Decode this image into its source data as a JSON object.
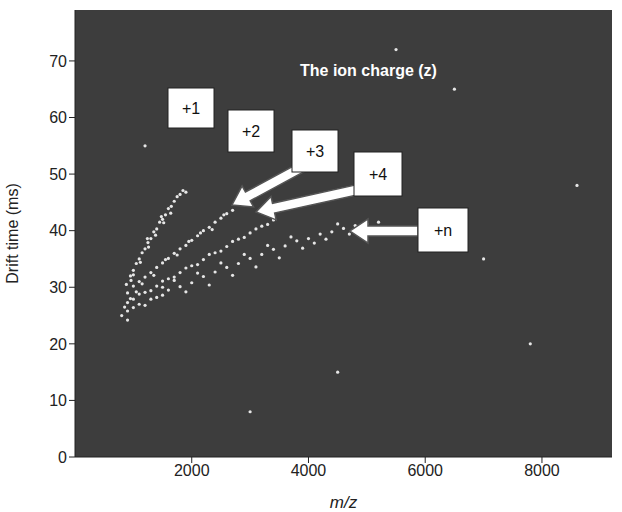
{
  "chart_data": {
    "type": "scatter",
    "title": "The ion charge (z)",
    "x_label": "m/z",
    "y_label": "Drift time (ms)",
    "xlim": [
      0,
      9200
    ],
    "ylim": [
      0,
      79
    ],
    "xticks": [
      2000,
      4000,
      6000,
      8000
    ],
    "yticks": [
      0,
      10,
      20,
      30,
      40,
      50,
      60,
      70
    ],
    "grid": false,
    "color": "#e6e6e6",
    "marker": "circle",
    "annotations": [
      "+1",
      "+2",
      "+3",
      "+4",
      "+n"
    ],
    "x": [
      880,
      950,
      1000,
      1050,
      1100,
      1150,
      1200,
      1250,
      1300,
      1350,
      1400,
      1450,
      1500,
      1550,
      1600,
      1650,
      1700,
      1750,
      1800,
      1850,
      1900,
      1000,
      1120,
      1260,
      1380,
      1520,
      1640,
      1240,
      1480,
      960,
      900,
      1000,
      1100,
      1200,
      1300,
      1400,
      1500,
      1600,
      1700,
      1800,
      1900,
      2000,
      2100,
      2200,
      2300,
      2400,
      2500,
      2600,
      2700,
      1150,
      1350,
      1550,
      1750,
      1950,
      2150,
      2350,
      2550,
      900,
      1000,
      1200,
      1400,
      1600,
      1800,
      2000,
      2200,
      2400,
      2600,
      2800,
      3000,
      3200,
      3400,
      1100,
      1300,
      1500,
      1700,
      1900,
      2100,
      2300,
      2500,
      2700,
      2900,
      3100,
      3300,
      800,
      850,
      900,
      1000,
      1100,
      1200,
      1300,
      1400,
      1500,
      1600,
      1800,
      2000,
      2200,
      2400,
      2600,
      2800,
      3000,
      3200,
      3400,
      3600,
      3800,
      4000,
      4200,
      4400,
      4600,
      4800,
      5000,
      5200,
      1500,
      1700,
      1900,
      2100,
      2300,
      2500,
      2700,
      2900,
      3100,
      3300,
      3500,
      3700,
      3900,
      4100,
      4300,
      4500,
      4700,
      900,
      950,
      1050,
      6500,
      7800,
      3000,
      5500,
      8600,
      1200,
      4500,
      7000
    ],
    "values": [
      30.5,
      32,
      33,
      34.2,
      35,
      36.1,
      36.8,
      37.9,
      38.6,
      39.8,
      40.3,
      41.5,
      42,
      42.8,
      43.9,
      44.3,
      45.2,
      46,
      46.4,
      47.1,
      46.8,
      32.2,
      34.4,
      37.1,
      39.2,
      41.4,
      43.1,
      38.6,
      42.5,
      31.2,
      29,
      30.2,
      31,
      31.8,
      32.6,
      33.5,
      34.3,
      35.1,
      36,
      36.8,
      37.4,
      38.3,
      39.1,
      40,
      40.6,
      41.5,
      42.2,
      43,
      43.6,
      30.6,
      32.1,
      34.9,
      35.7,
      38.1,
      39.6,
      40.2,
      42.8,
      27.3,
      27.9,
      29.1,
      30.2,
      31.5,
      32.6,
      33.8,
      34.9,
      36.1,
      37.2,
      38.5,
      39.6,
      40.8,
      41.9,
      28.8,
      29.4,
      31.1,
      31.8,
      33.4,
      34,
      35.8,
      36.4,
      38.1,
      38.8,
      40.3,
      41.1,
      25,
      26.5,
      25.8,
      26.4,
      27,
      26.8,
      27.9,
      28.2,
      28.6,
      29.5,
      30.1,
      30.8,
      31.9,
      32.7,
      33.5,
      34.2,
      35.1,
      35.8,
      36.7,
      37.3,
      38.2,
      38.6,
      39.4,
      39.8,
      40.4,
      40.9,
      41.2,
      41.5,
      30,
      31.2,
      29.2,
      32.5,
      30.4,
      34.3,
      32.1,
      35.8,
      33.6,
      37.4,
      35.2,
      38.9,
      36.9,
      37.8,
      38.5,
      41.2,
      39.4,
      24.2,
      28,
      29.2,
      65,
      20,
      8,
      72,
      48,
      55,
      15,
      35
    ]
  }
}
